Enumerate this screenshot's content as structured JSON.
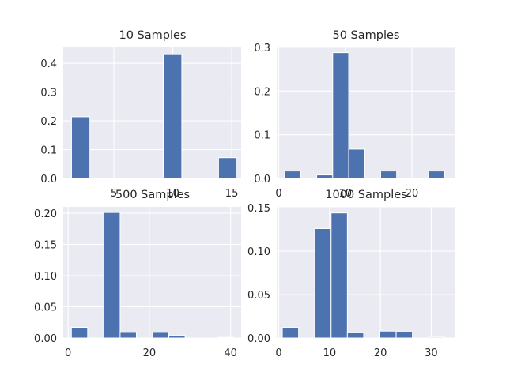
{
  "colors": {
    "bar": "#4c72b0",
    "plot_background": "#eaeaf2",
    "grid": "#ffffff",
    "text": "#262626"
  },
  "chart_data": [
    {
      "type": "bar",
      "title": "10 Samples",
      "xlim": [
        0.7,
        15.8
      ],
      "ylim": [
        0,
        0.455
      ],
      "xticks": [
        5,
        10,
        15
      ],
      "yticks": [
        0.0,
        0.1,
        0.2,
        0.3,
        0.4
      ],
      "ytick_decimals": 1,
      "grid": true,
      "bins": [
        {
          "x0": 1.4,
          "x1": 2.96,
          "value": 0.214
        },
        {
          "x0": 2.96,
          "x1": 4.52,
          "value": 0
        },
        {
          "x0": 4.52,
          "x1": 6.08,
          "value": 0
        },
        {
          "x0": 6.08,
          "x1": 7.64,
          "value": 0
        },
        {
          "x0": 7.64,
          "x1": 9.2,
          "value": 0
        },
        {
          "x0": 9.2,
          "x1": 10.76,
          "value": 0.43
        },
        {
          "x0": 10.76,
          "x1": 12.32,
          "value": 0
        },
        {
          "x0": 12.32,
          "x1": 13.88,
          "value": 0
        },
        {
          "x0": 13.88,
          "x1": 15.44,
          "value": 0.072
        }
      ]
    },
    {
      "type": "bar",
      "title": "50 Samples",
      "xlim": [
        -0.3,
        26.4
      ],
      "ylim": [
        0,
        0.3
      ],
      "xticks": [
        0,
        10,
        20
      ],
      "yticks": [
        0.0,
        0.1,
        0.2,
        0.3
      ],
      "ytick_decimals": 1,
      "grid": true,
      "bins": [
        {
          "x0": 0.9,
          "x1": 3.3,
          "value": 0.017
        },
        {
          "x0": 3.3,
          "x1": 5.7,
          "value": 0
        },
        {
          "x0": 5.7,
          "x1": 8.1,
          "value": 0.008
        },
        {
          "x0": 8.1,
          "x1": 10.5,
          "value": 0.288
        },
        {
          "x0": 10.5,
          "x1": 12.9,
          "value": 0.067
        },
        {
          "x0": 12.9,
          "x1": 15.3,
          "value": 0
        },
        {
          "x0": 15.3,
          "x1": 17.7,
          "value": 0.017
        },
        {
          "x0": 17.7,
          "x1": 20.1,
          "value": 0
        },
        {
          "x0": 20.1,
          "x1": 22.5,
          "value": 0
        },
        {
          "x0": 22.5,
          "x1": 24.9,
          "value": 0.017
        }
      ]
    },
    {
      "type": "bar",
      "title": "500 Samples",
      "xlim": [
        -1.2,
        42.6
      ],
      "ylim": [
        0,
        0.21
      ],
      "xticks": [
        0,
        20,
        40
      ],
      "yticks": [
        0.0,
        0.05,
        0.1,
        0.15,
        0.2
      ],
      "ytick_decimals": 2,
      "grid": true,
      "bins": [
        {
          "x0": 0.8,
          "x1": 4.8,
          "value": 0.017
        },
        {
          "x0": 4.8,
          "x1": 8.8,
          "value": 0
        },
        {
          "x0": 8.8,
          "x1": 12.8,
          "value": 0.201
        },
        {
          "x0": 12.8,
          "x1": 16.8,
          "value": 0.009
        },
        {
          "x0": 16.8,
          "x1": 20.8,
          "value": 0
        },
        {
          "x0": 20.8,
          "x1": 24.8,
          "value": 0.009
        },
        {
          "x0": 24.8,
          "x1": 28.8,
          "value": 0.004
        },
        {
          "x0": 28.8,
          "x1": 32.8,
          "value": 0
        },
        {
          "x0": 32.8,
          "x1": 36.8,
          "value": 0
        },
        {
          "x0": 36.8,
          "x1": 40.8,
          "value": 0.001
        }
      ]
    },
    {
      "type": "bar",
      "title": "1000 Samples",
      "xlim": [
        -0.4,
        34.6
      ],
      "ylim": [
        0,
        0.151
      ],
      "xticks": [
        0,
        10,
        20,
        30
      ],
      "yticks": [
        0.0,
        0.05,
        0.1,
        0.15
      ],
      "ytick_decimals": 2,
      "grid": true,
      "bins": [
        {
          "x0": 0.7,
          "x1": 3.9,
          "value": 0.012
        },
        {
          "x0": 3.9,
          "x1": 7.1,
          "value": 0
        },
        {
          "x0": 7.1,
          "x1": 10.3,
          "value": 0.126
        },
        {
          "x0": 10.3,
          "x1": 13.5,
          "value": 0.144
        },
        {
          "x0": 13.5,
          "x1": 16.7,
          "value": 0.006
        },
        {
          "x0": 16.7,
          "x1": 19.9,
          "value": 0
        },
        {
          "x0": 19.9,
          "x1": 23.1,
          "value": 0.008
        },
        {
          "x0": 23.1,
          "x1": 26.3,
          "value": 0.007
        },
        {
          "x0": 26.3,
          "x1": 29.5,
          "value": 0
        },
        {
          "x0": 29.5,
          "x1": 32.7,
          "value": 0.001
        }
      ]
    }
  ]
}
